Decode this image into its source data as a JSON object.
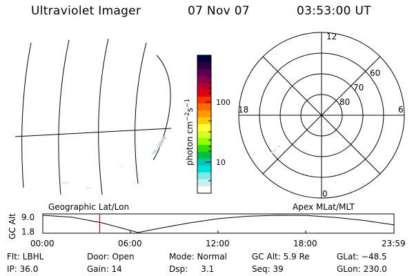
{
  "header": {
    "instrument": "Ultraviolet Imager",
    "date": "07 Nov 07",
    "time": "03:53:00 UT"
  },
  "colorbar": {
    "label_main": "photon cm",
    "label_sup1": "−2",
    "label_mid": "s",
    "label_sup2": "−1",
    "tick_high": "100",
    "tick_low": "10",
    "colors": [
      "#000040",
      "#2a0040",
      "#5a0050",
      "#8a0050",
      "#b80030",
      "#e00010",
      "#ff3000",
      "#ff6a00",
      "#ff9a00",
      "#ffcc00",
      "#ffff40",
      "#d4ff20",
      "#90ff00",
      "#30e000",
      "#00c040",
      "#00c8b0",
      "#00e0e0",
      "#80e8e8",
      "#c8f0f0",
      "#ffffff"
    ]
  },
  "polar": {
    "label_top": "12",
    "label_bottom": "0",
    "label_left": "18",
    "label_right": "6",
    "lat_labels": [
      "60",
      "70",
      "80"
    ]
  },
  "timeline": {
    "left_title": "Geographic Lat/Lon",
    "right_title": "Apex MLat/MLT",
    "yaxis_label": "GC Alt",
    "ymax": "9.0",
    "ymin": "1.8",
    "ymin_value": 1.8,
    "ymax_value": 9.0,
    "x_ticks": [
      "00:00",
      "06:00",
      "12:00",
      "18:00",
      "23:59"
    ],
    "x_range_hours": [
      0,
      24
    ],
    "current_time_hours": 3.883,
    "alt_curve": [
      {
        "t": 0,
        "alt": 9.0
      },
      {
        "t": 2,
        "alt": 8.2
      },
      {
        "t": 4,
        "alt": 5.9
      },
      {
        "t": 5.5,
        "alt": 3.5
      },
      {
        "t": 6.5,
        "alt": 1.8
      },
      {
        "t": 8,
        "alt": 3.6
      },
      {
        "t": 10,
        "alt": 5.8
      },
      {
        "t": 12,
        "alt": 7.6
      },
      {
        "t": 14,
        "alt": 8.6
      },
      {
        "t": 16,
        "alt": 9.0
      },
      {
        "t": 18,
        "alt": 8.9
      },
      {
        "t": 20,
        "alt": 8.1
      },
      {
        "t": 22,
        "alt": 6.8
      },
      {
        "t": 24,
        "alt": 5.0
      }
    ]
  },
  "info_row1": {
    "filter": "Flt: LBHL",
    "door": "Door: Open",
    "mode": "Mode: Normal",
    "gc_alt": "GC Alt: 5.9 Re",
    "glat": "GLat: −48.5"
  },
  "info_row2": {
    "ip": "IP: 36.0",
    "gain": "Gain: 14",
    "dsp": "Dsp:     3.1",
    "seq": "Seq: 39",
    "glon": "GLon: 230.0"
  }
}
